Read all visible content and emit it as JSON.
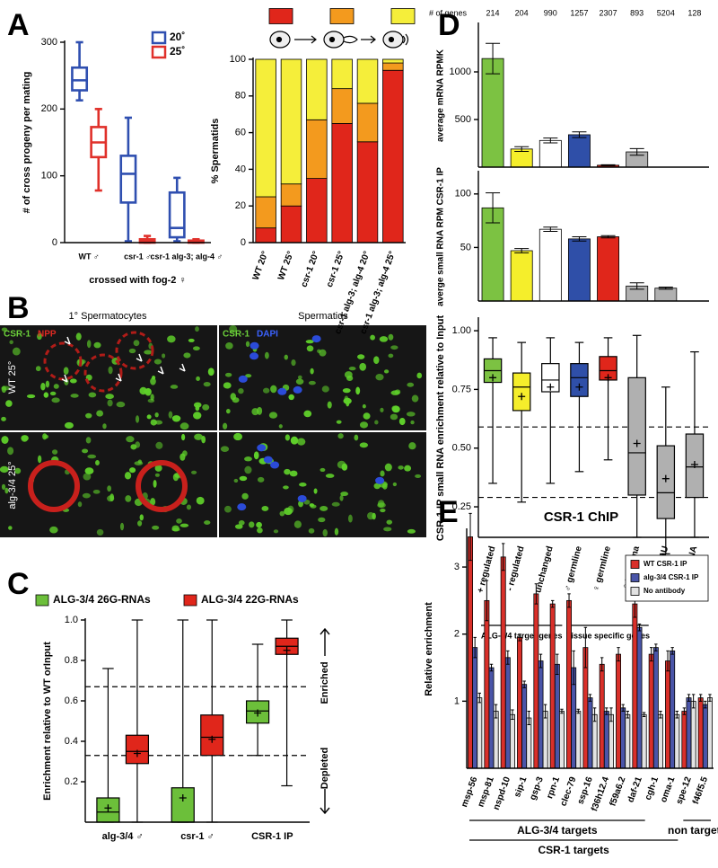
{
  "panel_labels": [
    "A",
    "B",
    "C",
    "D",
    "E"
  ],
  "microscopy": {
    "columns": [
      "1° Spermatocytes",
      "Spermatids"
    ],
    "channels": [
      [
        "CSR-1",
        "NPP"
      ],
      [
        "CSR-1",
        "DAPI"
      ]
    ],
    "rows": [
      "WT 25°",
      "alg-3/4 25°"
    ]
  },
  "chart_data": [
    {
      "type": "box",
      "ylabel": "# of cross progeny per mating",
      "xlabel": "crossed with fog-2 ♀",
      "categories": [
        "WT ♂",
        "csr-1 ♂",
        "csr-1 alg-3; alg-4 ♂"
      ],
      "filled": false,
      "series": [
        {
          "name": "20˚",
          "color": "#2f4fb0",
          "min": [
            213,
            2,
            2
          ],
          "q1": [
            228,
            60,
            8
          ],
          "median": [
            243,
            103,
            22
          ],
          "q3": [
            262,
            130,
            75
          ],
          "max": [
            300,
            187,
            97
          ]
        },
        {
          "name": "25˚",
          "color": "#e0302a",
          "min": [
            78,
            0,
            0
          ],
          "q1": [
            128,
            0,
            0
          ],
          "median": [
            150,
            2,
            1
          ],
          "q3": [
            173,
            5,
            3
          ],
          "max": [
            200,
            10,
            5
          ]
        }
      ],
      "ylim": [
        0,
        300
      ],
      "yticks": [
        0,
        100,
        200,
        300
      ]
    },
    {
      "type": "bar",
      "stacked": true,
      "ylabel": "% Spermatids",
      "categories": [
        "WT 20°",
        "WT 25°",
        "csr-1 20°",
        "csr-1 25°",
        "csr-1 alg-3; alg-4 20°",
        "csr-1 alg-3; alg-4 25°"
      ],
      "series": [
        {
          "color": "#e0261b",
          "values": [
            8,
            20,
            35,
            65,
            55,
            94
          ]
        },
        {
          "color": "#f39a1e",
          "values": [
            17,
            12,
            32,
            19,
            21,
            4
          ]
        },
        {
          "color": "#f5ee3a",
          "values": [
            75,
            68,
            33,
            16,
            24,
            2
          ]
        }
      ],
      "ylim": [
        0,
        100
      ],
      "yticks": [
        0,
        20,
        40,
        60,
        80,
        100
      ]
    },
    {
      "type": "box",
      "ylabel": "Enrichment relative to WT orInput",
      "annotations": [
        "Enriched",
        "Depleted"
      ],
      "categories": [
        "alg-3/4 ♂",
        "csr-1 ♂",
        "CSR-1 IP"
      ],
      "filled": true,
      "series": [
        {
          "name": "ALG-3/4 26G-RNAs",
          "color": "#6cbf3a",
          "min": [
            0,
            0,
            0.33
          ],
          "q1": [
            0,
            0,
            0.49
          ],
          "median": [
            0.05,
            0,
            0.55
          ],
          "q3": [
            0.12,
            0.17,
            0.6
          ],
          "max": [
            0.76,
            1.0,
            0.88
          ],
          "mean": [
            0.07,
            0.12,
            0.54
          ]
        },
        {
          "name": "ALG-3/4 22G-RNAs",
          "color": "#e0261b",
          "min": [
            0,
            0,
            0.18
          ],
          "q1": [
            0.29,
            0.33,
            0.83
          ],
          "median": [
            0.35,
            0.42,
            0.87
          ],
          "q3": [
            0.43,
            0.53,
            0.91
          ],
          "max": [
            1.0,
            1.0,
            1.0
          ],
          "mean": [
            0.34,
            0.41,
            0.85
          ]
        }
      ],
      "hlines": [
        0.67,
        0.33
      ],
      "ylim": [
        0,
        1.0
      ],
      "yticks": [
        0.2,
        0.4,
        0.6,
        0.8,
        {
          "value": 1.0,
          "label": "1.0"
        }
      ]
    },
    {
      "type": "bar",
      "ylabel": "average mRNA RPMK",
      "header_label": "# of genes",
      "header_values": [
        214,
        204,
        990,
        1257,
        2307,
        893,
        5204,
        128
      ],
      "series": [
        {
          "colors": [
            "#7cc242",
            "#f5ee2b",
            "#ffffff",
            "#2f4fa8",
            "#e0261b",
            "#b0b0b0",
            "#b0b0b0",
            "#b0b0b0"
          ],
          "values": [
            1140,
            190,
            280,
            340,
            20,
            160,
            null,
            null
          ],
          "errors": [
            160,
            25,
            25,
            30,
            5,
            35,
            null,
            null
          ]
        }
      ],
      "ylim": [
        0,
        1500
      ],
      "yticks": [
        500,
        1000
      ]
    },
    {
      "type": "bar",
      "ylabel": "averge small RNA RPM CSR-1 IP",
      "series": [
        {
          "colors": [
            "#7cc242",
            "#f5ee2b",
            "#ffffff",
            "#2f4fa8",
            "#e0261b",
            "#b0b0b0",
            "#b0b0b0",
            "#b0b0b0"
          ],
          "values": [
            87,
            47,
            67,
            58,
            60,
            14,
            12,
            null
          ],
          "errors": [
            14,
            2,
            2,
            2,
            1,
            3,
            1,
            null
          ]
        }
      ],
      "ylim": [
        0,
        120
      ],
      "yticks": [
        50,
        100
      ]
    },
    {
      "type": "box",
      "ylabel": "CSR-1 IP small RNA enrichment relative to Input",
      "filled": true,
      "categories": [
        "+ regulated",
        "- regulated",
        "unchanged",
        "♂ germline",
        "♀ germline",
        "♀+♂ soma",
        "21U",
        "miRNA"
      ],
      "groups": [
        "ALG-3/4 target genes",
        "Tissue specific genes"
      ],
      "series": [
        {
          "colors": [
            "#7cc242",
            "#f5ee2b",
            "#ffffff",
            "#2f4fa8",
            "#e0261b",
            "#b0b0b0",
            "#b0b0b0",
            "#b0b0b0"
          ],
          "min": [
            0.35,
            0.27,
            0.35,
            0.4,
            0.45,
            0.12,
            0.05,
            0.12
          ],
          "q1": [
            0.78,
            0.66,
            0.74,
            0.72,
            0.79,
            0.3,
            0.2,
            0.29
          ],
          "median": [
            0.83,
            0.76,
            0.79,
            0.8,
            0.83,
            0.48,
            0.31,
            0.42
          ],
          "q3": [
            0.88,
            0.82,
            0.86,
            0.86,
            0.89,
            0.8,
            0.51,
            0.56
          ],
          "max": [
            0.97,
            0.95,
            0.97,
            0.95,
            0.97,
            0.98,
            0.76,
            0.91
          ],
          "mean": [
            0.8,
            0.72,
            0.76,
            0.76,
            0.8,
            0.52,
            0.37,
            0.43
          ]
        }
      ],
      "hlines": [
        0.59,
        0.29
      ],
      "ylim": [
        0.12,
        1.05
      ],
      "yticks": [
        0.25,
        {
          "value": 0.5,
          "label": "0.50"
        },
        0.75,
        {
          "value": 1.0,
          "label": "1.00"
        }
      ]
    },
    {
      "type": "bar",
      "title": "CSR-1 ChIP",
      "ylabel": "Relative enrichment",
      "categories": [
        "msp-56",
        "msp-81",
        "nspd-10",
        "sip-1",
        "gsp-3",
        "rpn-1",
        "clec-79",
        "ssp-16",
        "f36h12.4",
        "f59a6.2",
        "daf-21",
        "cgh-1",
        "oma-1",
        "spe-12",
        "f46f5.5"
      ],
      "groups": [
        "ALG-3/4 targets",
        "CSR-1 targets",
        "non targets"
      ],
      "series": [
        {
          "name": "WT CSR-1 IP",
          "color": "#d9302a",
          "values": [
            3.45,
            2.5,
            3.15,
            1.95,
            2.6,
            2.45,
            2.5,
            1.8,
            1.55,
            1.7,
            2.45,
            1.7,
            1.6,
            0.85,
            1.05
          ],
          "errors": [
            0.35,
            0.3,
            0.2,
            0.05,
            0.15,
            0.05,
            0.1,
            0.3,
            0.1,
            0.1,
            0.2,
            0.1,
            0.15,
            0.05,
            0.05
          ]
        },
        {
          "name": "alg-3/4 CSR-1 IP",
          "color": "#4a55a8",
          "values": [
            1.8,
            1.5,
            1.65,
            1.25,
            1.6,
            1.55,
            1.5,
            1.05,
            0.85,
            0.9,
            2.1,
            1.8,
            1.75,
            1.05,
            0.95
          ],
          "errors": [
            0.15,
            0.05,
            0.1,
            0.05,
            0.1,
            0.15,
            0.25,
            0.05,
            0.05,
            0.05,
            0.05,
            0.05,
            0.05,
            0.05,
            0.05
          ]
        },
        {
          "name": "No antibody",
          "color": "#e2e2e2",
          "values": [
            1.05,
            0.85,
            0.8,
            0.75,
            0.85,
            0.85,
            0.85,
            0.8,
            0.8,
            0.8,
            0.8,
            0.8,
            0.8,
            1.0,
            1.05
          ],
          "errors": [
            0.07,
            0.1,
            0.07,
            0.1,
            0.1,
            0.03,
            0.03,
            0.1,
            0.1,
            0.05,
            0.03,
            0.05,
            0.05,
            0.1,
            0.05
          ]
        }
      ],
      "ylim": [
        0,
        3.55
      ],
      "yticks": [
        1,
        2,
        3
      ]
    }
  ]
}
